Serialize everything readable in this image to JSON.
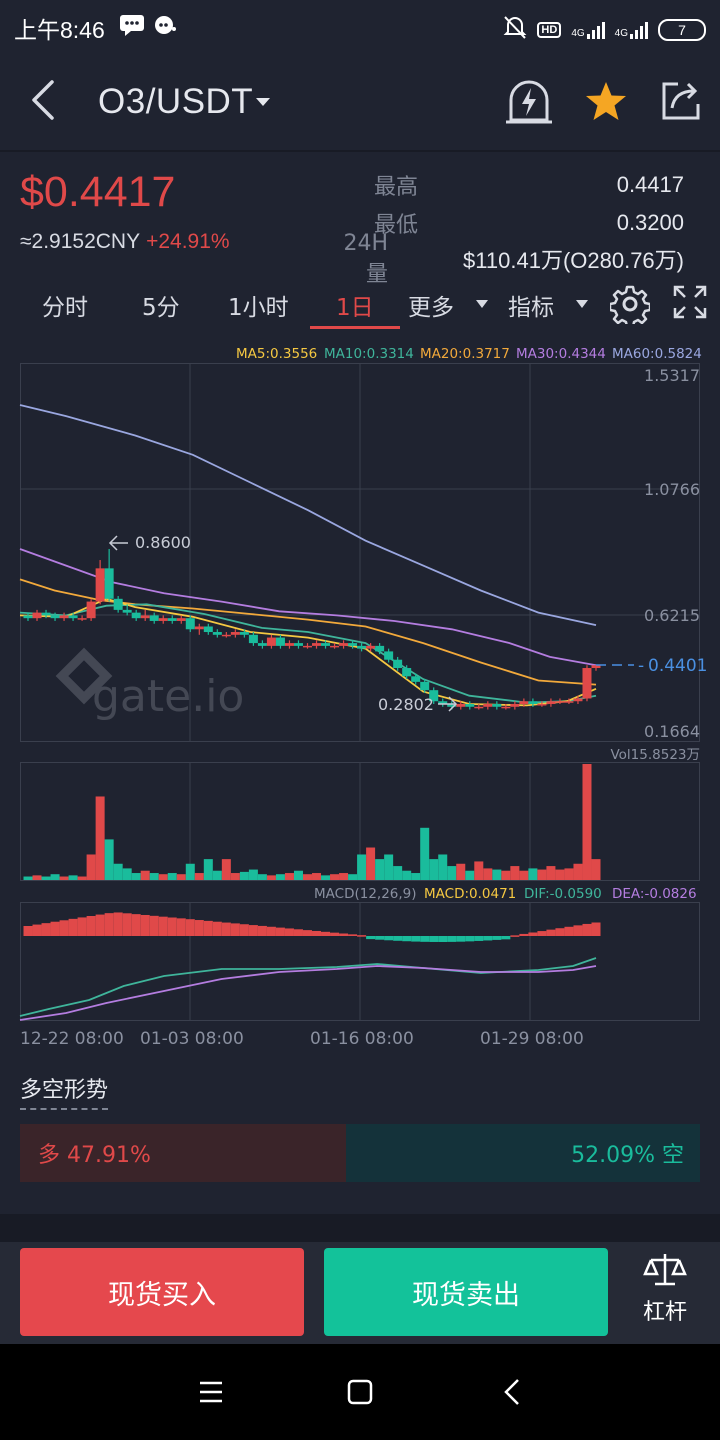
{
  "status_bar": {
    "time": "上午8:46",
    "network_1": "4G",
    "network_2": "4G",
    "battery": "7",
    "hd": "HD"
  },
  "header": {
    "pair": "O3/USDT"
  },
  "ticker": {
    "price": "$0.4417",
    "cny": "≈2.9152CNY",
    "change_pct": "+24.91%",
    "high_label": "最高",
    "high_value": "0.4417",
    "low_label": "最低",
    "low_value": "0.3200",
    "vol_label": "24H量",
    "vol_value": "$110.41万(O280.76万)"
  },
  "tabs": [
    {
      "label": "分时"
    },
    {
      "label": "5分"
    },
    {
      "label": "1小时"
    },
    {
      "label": "1日",
      "active": true
    },
    {
      "label": "更多"
    },
    {
      "label": "指标"
    }
  ],
  "chart": {
    "ma_legend": {
      "ma5": "MA5:0.3556",
      "ma10": "MA10:0.3314",
      "ma20": "MA20:0.3717",
      "ma30": "MA30:0.4344",
      "ma60": "MA60:0.5824"
    },
    "y_ticks": [
      "1.5317",
      "1.0766",
      "0.6215",
      "0.1664"
    ],
    "y_ticks_values": [
      1.5317,
      1.0766,
      0.6215,
      0.1664
    ],
    "current_price_tag": "0.4401",
    "max_marker": "0.8600",
    "min_marker": "0.2802",
    "vol_label": "Vol15.8523万",
    "macd_label": "MACD(12,26,9)",
    "macd_value": "MACD:0.0471",
    "dif_value": "DIF:-0.0590",
    "dea_value": "DEA:-0.0826",
    "x_labels": [
      "12-22 08:00",
      "01-03 08:00",
      "01-16 08:00",
      "01-29 08:00"
    ],
    "watermark": "gate.io"
  },
  "long_short": {
    "title": "多空形势",
    "long": "多 47.91%",
    "short": "52.09% 空",
    "long_pct": 47.91
  },
  "actions": {
    "buy": "现货买入",
    "sell": "现货卖出",
    "leverage": "杠杆"
  },
  "colors": {
    "up": "#e04949",
    "down": "#1abc9c",
    "ma5": "#f5c842",
    "ma10": "#3fb59b",
    "ma20": "#f2a93b",
    "ma30": "#b47de0",
    "ma60": "#9aa7e0"
  }
}
